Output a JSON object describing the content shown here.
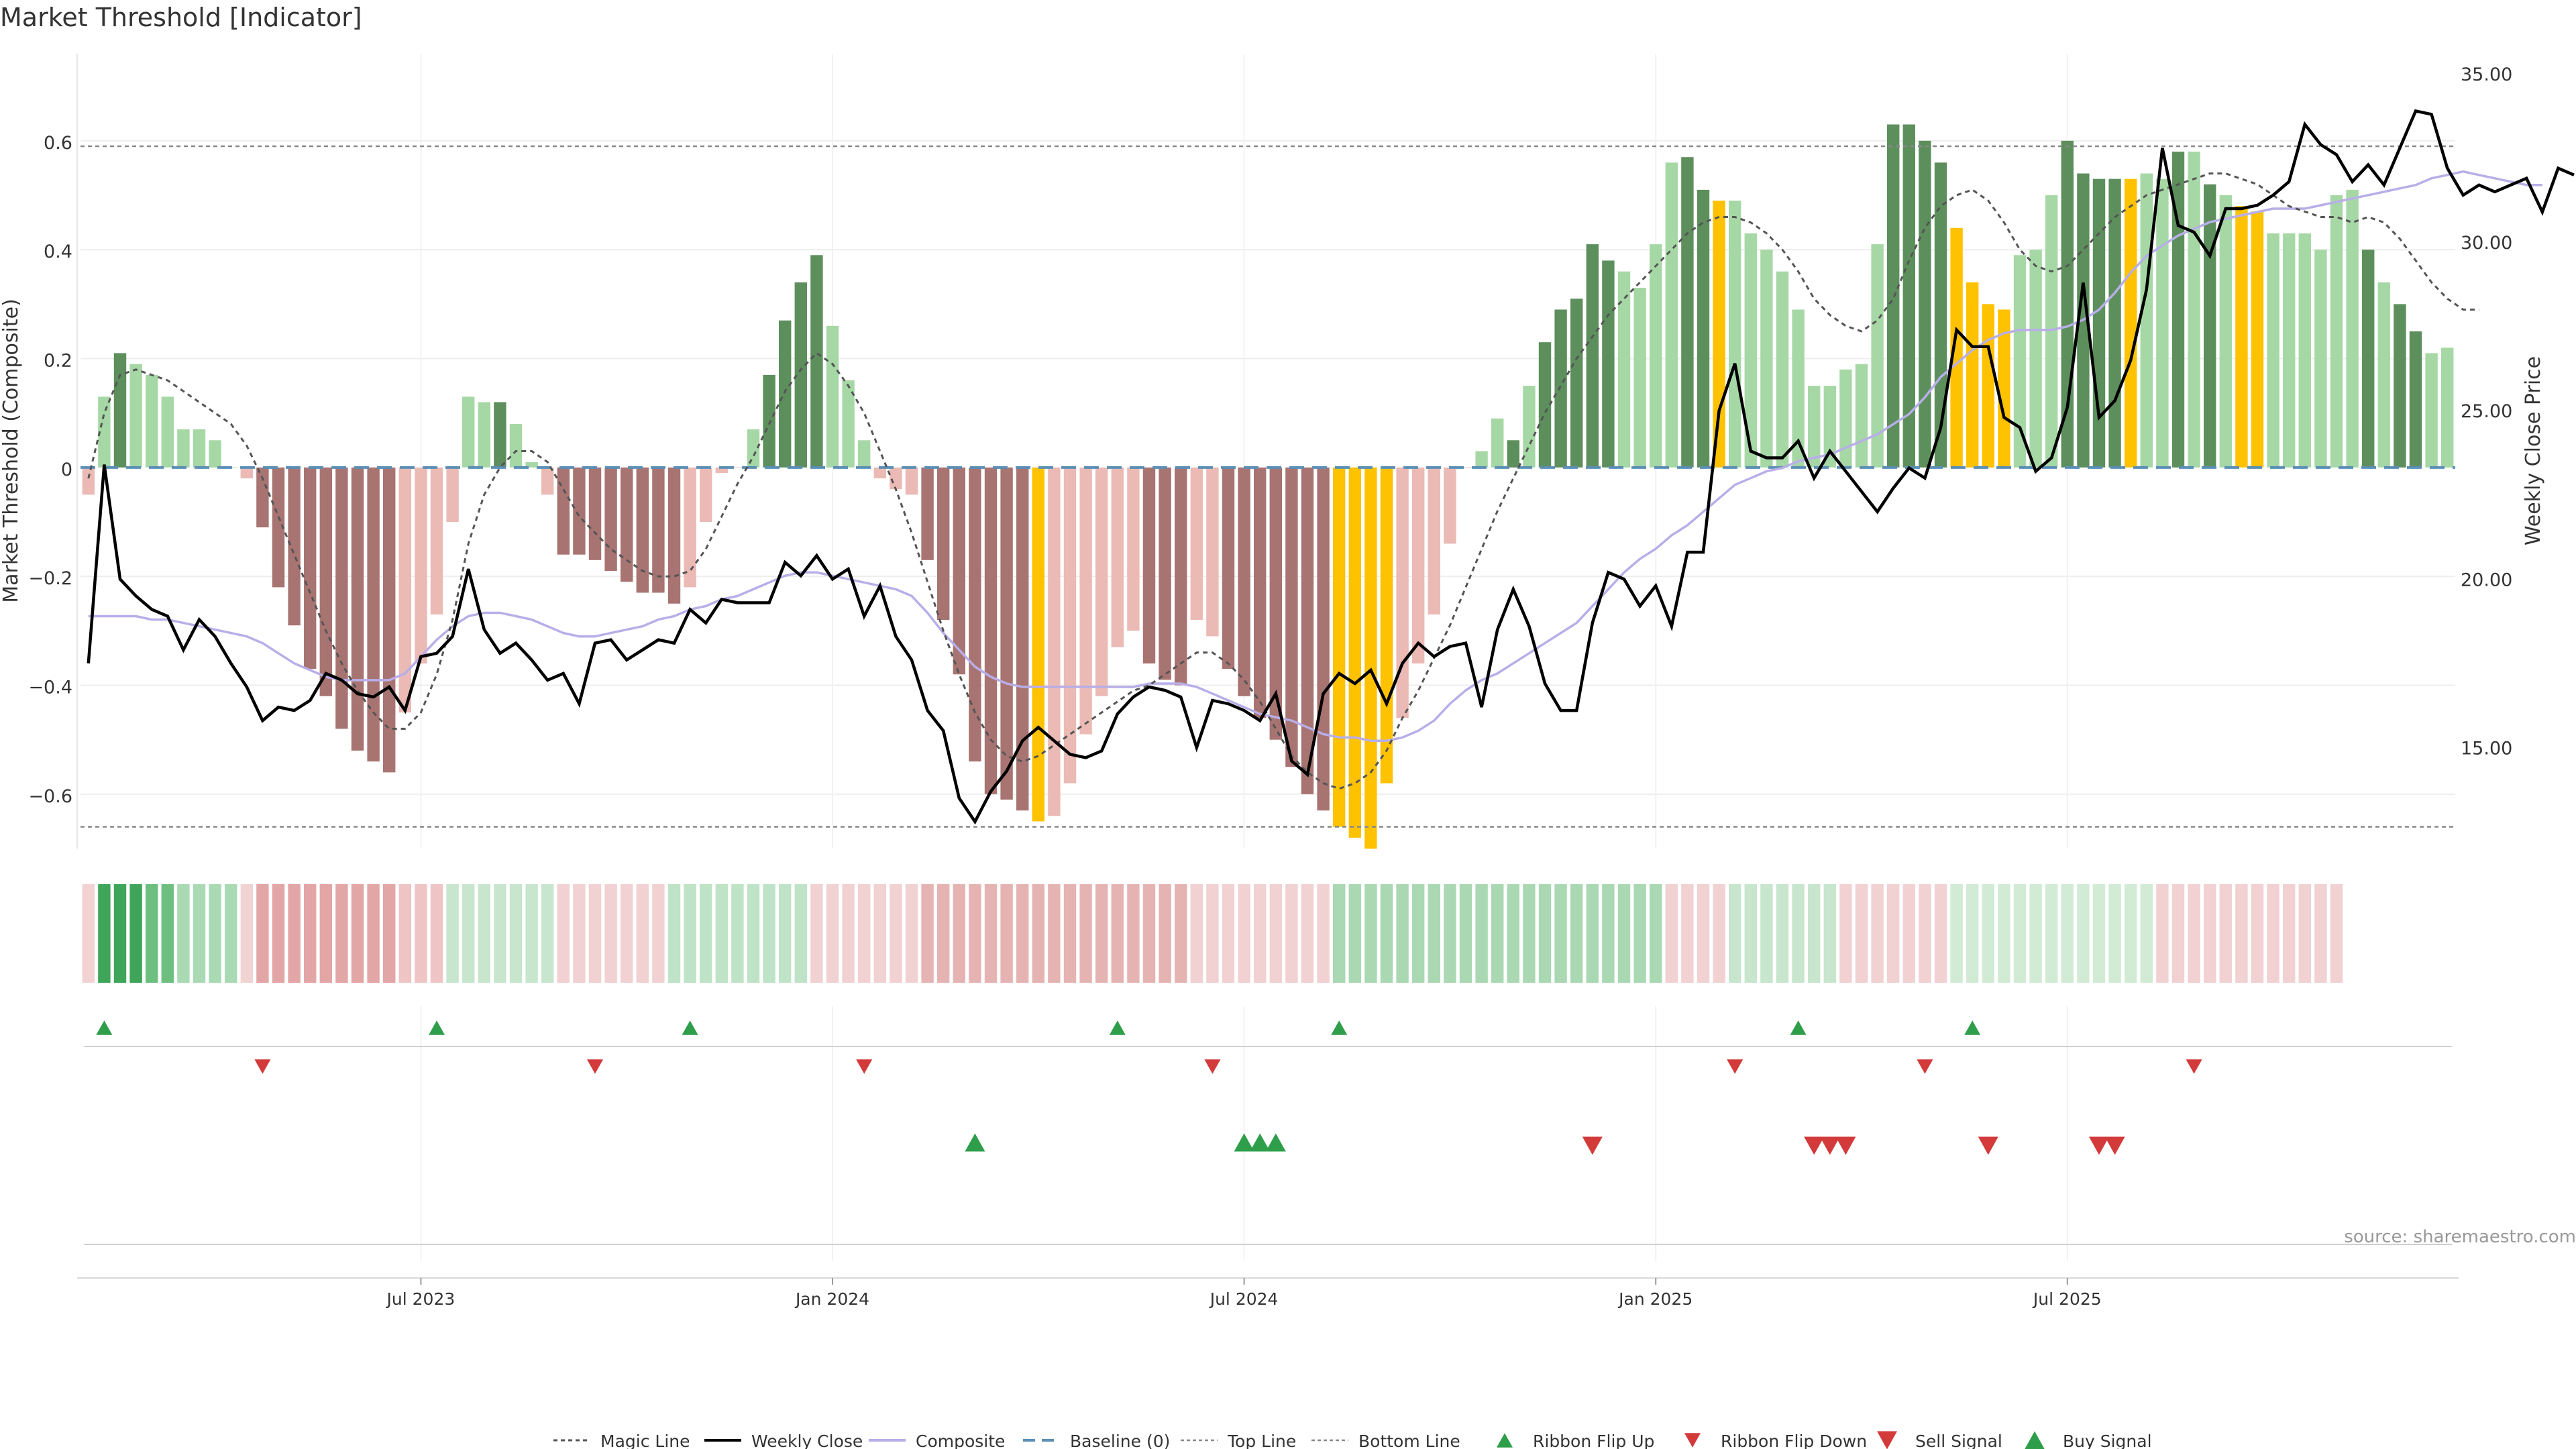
{
  "chart_data": {
    "type": "bar",
    "title": "Market Threshold [Indicator]",
    "source": "source: sharemaestro.com",
    "ylabel_left": "Market Threshold (Composite)",
    "ylabel_right": "Weekly Close Price",
    "ylim_left": [
      -0.7,
      0.76
    ],
    "ylim_right": [
      12.0,
      35.6
    ],
    "yticks_left": [
      "0.6",
      "0.4",
      "0.2",
      "0",
      "−0.2",
      "−0.4",
      "−0.6"
    ],
    "yticks_right": [
      "35.00",
      "30.00",
      "25.00",
      "20.00",
      "15.00"
    ],
    "xticks": [
      "Jul 2023",
      "Jan 2024",
      "Jul 2024",
      "Jan 2025",
      "Jul 2025"
    ],
    "xtick_weeks": [
      21,
      47,
      73,
      99,
      125
    ],
    "top_line": 0.59,
    "bottom_line": -0.66,
    "composite": [
      -0.05,
      0.13,
      0.21,
      0.19,
      0.17,
      0.13,
      0.07,
      0.07,
      0.05,
      0.0,
      -0.02,
      -0.11,
      -0.22,
      -0.29,
      -0.37,
      -0.42,
      -0.48,
      -0.52,
      -0.54,
      -0.56,
      -0.45,
      -0.36,
      -0.27,
      -0.1,
      0.13,
      0.12,
      0.12,
      0.08,
      0.01,
      -0.05,
      -0.16,
      -0.16,
      -0.17,
      -0.19,
      -0.21,
      -0.23,
      -0.23,
      -0.25,
      -0.22,
      -0.1,
      -0.01,
      0.0,
      0.07,
      0.17,
      0.27,
      0.34,
      0.39,
      0.26,
      0.16,
      0.05,
      -0.02,
      -0.04,
      -0.05,
      -0.17,
      -0.28,
      -0.38,
      -0.54,
      -0.6,
      -0.61,
      -0.63,
      -0.65,
      -0.64,
      -0.58,
      -0.49,
      -0.42,
      -0.33,
      -0.3,
      -0.36,
      -0.39,
      -0.4,
      -0.28,
      -0.31,
      -0.37,
      -0.42,
      -0.46,
      -0.5,
      -0.55,
      -0.6,
      -0.63,
      -0.66,
      -0.68,
      -0.7,
      -0.58,
      -0.46,
      -0.36,
      -0.27,
      -0.14,
      0.0,
      0.03,
      0.09,
      0.05,
      0.15,
      0.23,
      0.29,
      0.31,
      0.41,
      0.38,
      0.36,
      0.33,
      0.41,
      0.56,
      0.57,
      0.51,
      0.49,
      0.49,
      0.43,
      0.4,
      0.36,
      0.29,
      0.15,
      0.15,
      0.18,
      0.19,
      0.41,
      0.63,
      0.63,
      0.6,
      0.56,
      0.44,
      0.34,
      0.3,
      0.29,
      0.39,
      0.4,
      0.5,
      0.6,
      0.54,
      0.53,
      0.53,
      0.53,
      0.54,
      0.53,
      0.58,
      0.58,
      0.52,
      0.5,
      0.48,
      0.47,
      0.43,
      0.43,
      0.43,
      0.4,
      0.5,
      0.51,
      0.4,
      0.34,
      0.3,
      0.25,
      0.21,
      0.22
    ],
    "bar_color_class": [
      "lr",
      "lg",
      "dg",
      "lg",
      "lg",
      "lg",
      "lg",
      "lg",
      "lg",
      "lg",
      "lr",
      "dr",
      "dr",
      "dr",
      "dr",
      "dr",
      "dr",
      "dr",
      "dr",
      "dr",
      "lr",
      "lr",
      "lr",
      "lr",
      "lg",
      "lg",
      "dg",
      "lg",
      "lg",
      "lr",
      "dr",
      "dr",
      "dr",
      "dr",
      "dr",
      "dr",
      "dr",
      "dr",
      "lr",
      "lr",
      "lr",
      "lr",
      "lg",
      "dg",
      "dg",
      "dg",
      "dg",
      "lg",
      "lg",
      "lg",
      "lr",
      "lr",
      "lr",
      "dr",
      "dr",
      "dr",
      "dr",
      "dr",
      "dr",
      "dr",
      "y",
      "lr",
      "lr",
      "lr",
      "lr",
      "lr",
      "lr",
      "dr",
      "dr",
      "dr",
      "lr",
      "lr",
      "dr",
      "dr",
      "dr",
      "dr",
      "dr",
      "dr",
      "dr",
      "y",
      "y",
      "y",
      "y",
      "lr",
      "lr",
      "lr",
      "lr",
      "lr",
      "lg",
      "lg",
      "dg",
      "lg",
      "dg",
      "dg",
      "dg",
      "dg",
      "dg",
      "lg",
      "lg",
      "lg",
      "lg",
      "dg",
      "dg",
      "y",
      "lg",
      "lg",
      "lg",
      "lg",
      "lg",
      "lg",
      "lg",
      "lg",
      "lg",
      "lg",
      "dg",
      "dg",
      "dg",
      "dg",
      "y",
      "y",
      "y",
      "y",
      "lg",
      "lg",
      "lg",
      "dg",
      "dg",
      "dg",
      "dg",
      "y",
      "lg",
      "lg",
      "dg",
      "lg",
      "dg",
      "lg",
      "y",
      "y",
      "lg",
      "lg",
      "lg",
      "lg",
      "lg",
      "lg",
      "dg",
      "lg",
      "dg",
      "dg",
      "lg",
      "lg",
      "lg",
      "lg",
      "lg",
      "dg"
    ],
    "magic_line": [
      -0.02,
      0.1,
      0.17,
      0.18,
      0.17,
      0.16,
      0.14,
      0.12,
      0.1,
      0.08,
      0.04,
      -0.02,
      -0.09,
      -0.16,
      -0.23,
      -0.3,
      -0.36,
      -0.41,
      -0.45,
      -0.48,
      -0.48,
      -0.45,
      -0.38,
      -0.28,
      -0.14,
      -0.05,
      0.0,
      0.03,
      0.03,
      0.01,
      -0.04,
      -0.09,
      -0.12,
      -0.15,
      -0.17,
      -0.19,
      -0.2,
      -0.2,
      -0.19,
      -0.15,
      -0.09,
      -0.03,
      0.02,
      0.08,
      0.14,
      0.18,
      0.21,
      0.19,
      0.15,
      0.1,
      0.03,
      -0.04,
      -0.12,
      -0.21,
      -0.3,
      -0.38,
      -0.45,
      -0.5,
      -0.53,
      -0.54,
      -0.53,
      -0.51,
      -0.49,
      -0.47,
      -0.45,
      -0.43,
      -0.41,
      -0.4,
      -0.38,
      -0.36,
      -0.34,
      -0.34,
      -0.36,
      -0.39,
      -0.43,
      -0.48,
      -0.53,
      -0.56,
      -0.58,
      -0.59,
      -0.58,
      -0.56,
      -0.52,
      -0.46,
      -0.41,
      -0.35,
      -0.29,
      -0.22,
      -0.15,
      -0.08,
      -0.02,
      0.04,
      0.1,
      0.15,
      0.2,
      0.24,
      0.28,
      0.31,
      0.34,
      0.37,
      0.4,
      0.43,
      0.45,
      0.46,
      0.46,
      0.45,
      0.43,
      0.4,
      0.36,
      0.31,
      0.28,
      0.26,
      0.25,
      0.27,
      0.31,
      0.38,
      0.44,
      0.48,
      0.5,
      0.51,
      0.49,
      0.45,
      0.4,
      0.37,
      0.36,
      0.37,
      0.4,
      0.43,
      0.46,
      0.48,
      0.5,
      0.51,
      0.52,
      0.53,
      0.54,
      0.54,
      0.53,
      0.52,
      0.5,
      0.48,
      0.47,
      0.46,
      0.46,
      0.45,
      0.46,
      0.45,
      0.42,
      0.38,
      0.34,
      0.31,
      0.29,
      0.29
    ],
    "weekly_close": [
      17.5,
      23.4,
      20.0,
      19.5,
      19.1,
      18.9,
      17.9,
      18.8,
      18.3,
      17.5,
      16.8,
      15.8,
      16.2,
      16.1,
      16.4,
      17.2,
      17.0,
      16.6,
      16.5,
      16.8,
      16.1,
      17.7,
      17.8,
      18.3,
      20.3,
      18.5,
      17.8,
      18.1,
      17.6,
      17.0,
      17.2,
      16.3,
      18.1,
      18.2,
      17.6,
      17.9,
      18.2,
      18.1,
      19.1,
      18.7,
      19.4,
      19.3,
      19.3,
      19.3,
      20.5,
      20.1,
      20.7,
      20.0,
      20.3,
      18.9,
      19.8,
      18.3,
      17.6,
      16.1,
      15.5,
      13.5,
      12.8,
      13.7,
      14.3,
      15.2,
      15.6,
      15.2,
      14.8,
      14.7,
      14.9,
      16.0,
      16.5,
      16.8,
      16.7,
      16.5,
      15.0,
      16.4,
      16.3,
      16.1,
      15.8,
      16.6,
      14.6,
      14.2,
      16.6,
      17.2,
      16.9,
      17.3,
      16.3,
      17.5,
      18.1,
      17.7,
      18.0,
      18.1,
      16.2,
      18.5,
      19.7,
      18.6,
      16.9,
      16.1,
      16.1,
      18.7,
      20.2,
      20.0,
      19.2,
      19.8,
      18.6,
      20.8,
      20.8,
      25.0,
      26.4,
      23.8,
      23.6,
      23.6,
      24.1,
      23.0,
      23.8,
      23.2,
      22.6,
      22.0,
      22.7,
      23.3,
      23.0,
      24.5,
      27.4,
      26.9,
      26.9,
      24.8,
      24.5,
      23.2,
      23.6,
      25.1,
      28.8,
      24.8,
      25.3,
      26.5,
      28.6,
      32.8,
      30.5,
      30.3,
      29.6,
      31.0,
      31.0,
      31.1,
      31.4,
      31.8,
      33.5,
      32.9,
      32.6,
      31.8,
      32.3,
      31.7,
      32.8,
      33.9,
      33.8,
      32.2,
      31.4,
      31.7,
      31.5,
      31.7,
      31.9,
      30.9,
      32.2,
      32.0
    ],
    "composite_line": [
      18.9,
      18.9,
      18.9,
      18.9,
      18.8,
      18.8,
      18.7,
      18.6,
      18.5,
      18.4,
      18.3,
      18.1,
      17.8,
      17.5,
      17.3,
      17.1,
      17.0,
      17.0,
      17.0,
      17.0,
      17.2,
      17.7,
      18.2,
      18.6,
      18.9,
      19.0,
      19.0,
      18.9,
      18.8,
      18.6,
      18.4,
      18.3,
      18.3,
      18.4,
      18.5,
      18.6,
      18.8,
      18.9,
      19.1,
      19.2,
      19.4,
      19.5,
      19.7,
      19.9,
      20.1,
      20.2,
      20.2,
      20.1,
      20.0,
      19.9,
      19.8,
      19.7,
      19.5,
      19.0,
      18.4,
      17.9,
      17.4,
      17.1,
      16.9,
      16.8,
      16.8,
      16.8,
      16.8,
      16.8,
      16.8,
      16.8,
      16.8,
      16.9,
      16.9,
      16.9,
      16.8,
      16.6,
      16.4,
      16.2,
      16.0,
      15.9,
      15.8,
      15.6,
      15.4,
      15.3,
      15.3,
      15.2,
      15.2,
      15.3,
      15.5,
      15.8,
      16.3,
      16.7,
      17.0,
      17.2,
      17.5,
      17.8,
      18.1,
      18.4,
      18.7,
      19.2,
      19.7,
      20.2,
      20.6,
      20.9,
      21.3,
      21.6,
      22.0,
      22.4,
      22.8,
      23.0,
      23.2,
      23.3,
      23.5,
      23.6,
      23.7,
      23.9,
      24.1,
      24.3,
      24.6,
      24.9,
      25.4,
      26.0,
      26.4,
      26.8,
      27.1,
      27.3,
      27.4,
      27.4,
      27.4,
      27.5,
      27.7,
      28.0,
      28.5,
      29.1,
      29.6,
      29.9,
      30.2,
      30.4,
      30.6,
      30.7,
      30.8,
      30.9,
      31.0,
      31.0,
      31.0,
      31.1,
      31.2,
      31.3,
      31.4,
      31.5,
      31.6,
      31.7,
      31.9,
      32.0,
      32.1,
      32.0,
      31.9,
      31.8,
      31.7,
      31.7
    ],
    "ribbon_green_level": [
      0,
      3,
      3,
      3,
      2,
      2,
      2,
      2,
      1,
      1
    ],
    "ribbon_segments": [
      {
        "from": 0,
        "to": 0,
        "color": "#f2d2d2"
      },
      {
        "from": 1,
        "to": 3,
        "color": "#3fa55a"
      },
      {
        "from": 4,
        "to": 5,
        "color": "#6cbf7f"
      },
      {
        "from": 6,
        "to": 9,
        "color": "#a9dab4"
      },
      {
        "from": 10,
        "to": 10,
        "color": "#f1d3d3"
      },
      {
        "from": 11,
        "to": 19,
        "color": "#e3a6a6"
      },
      {
        "from": 20,
        "to": 22,
        "color": "#efc4c4"
      },
      {
        "from": 23,
        "to": 29,
        "color": "#c7e6cd"
      },
      {
        "from": 30,
        "to": 36,
        "color": "#f1d1d1"
      },
      {
        "from": 37,
        "to": 45,
        "color": "#bfe3c6"
      },
      {
        "from": 46,
        "to": 52,
        "color": "#f1d1d1"
      },
      {
        "from": 53,
        "to": 69,
        "color": "#e6b3b3"
      },
      {
        "from": 70,
        "to": 78,
        "color": "#f1d1d1"
      },
      {
        "from": 79,
        "to": 99,
        "color": "#a9d8b3"
      },
      {
        "from": 100,
        "to": 103,
        "color": "#f1d1d1"
      },
      {
        "from": 104,
        "to": 110,
        "color": "#c7e6cd"
      },
      {
        "from": 111,
        "to": 117,
        "color": "#f1d1d1"
      },
      {
        "from": 118,
        "to": 130,
        "color": "#d1ebd5"
      },
      {
        "from": 131,
        "to": 142,
        "color": "#f1d1d1"
      }
    ],
    "ribbon_flip_up_weeks": [
      1,
      22,
      38,
      65,
      79,
      108,
      119
    ],
    "ribbon_flip_down_weeks": [
      11,
      32,
      49,
      71,
      104,
      116,
      133
    ],
    "buy_signal_weeks": [
      56,
      73,
      74,
      75
    ],
    "sell_signal_weeks": [
      95,
      109,
      110,
      111,
      120,
      127,
      128
    ],
    "legend": [
      "Magic Line",
      "Weekly Close",
      "Composite",
      "Baseline (0)",
      "Top Line",
      "Bottom Line",
      "Ribbon Flip Up",
      "Ribbon Flip Down",
      "Sell Signal",
      "Buy Signal"
    ],
    "grid": true,
    "legend_placement": "bottom-center"
  },
  "colors": {
    "dark_green": "#5d8f5d",
    "light_green": "#a6d8a6",
    "dark_red": "#a87472",
    "light_red": "#ebbab5",
    "yellow": "#ffc200",
    "baseline": "#5b8fb5",
    "magic_line": "#555555",
    "weekly_close": "#000000",
    "composite": "#b8aee8",
    "signal_green": "#2f9e4a",
    "signal_red": "#d33a3a"
  }
}
